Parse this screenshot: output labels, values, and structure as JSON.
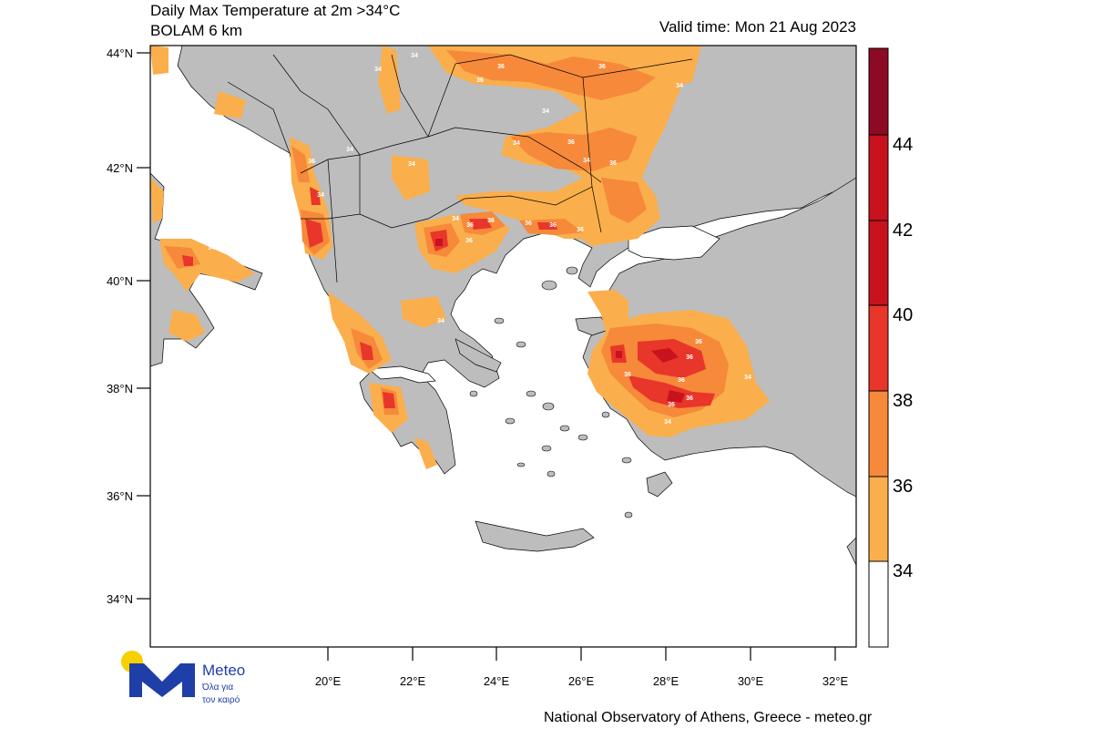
{
  "header": {
    "title_line1": "Daily Max Temperature at 2m >34°C",
    "title_line2": "BOLAM 6 km",
    "valid_time": "Valid time: Mon 21 Aug 2023"
  },
  "footer": {
    "credit": "National Observatory of Athens, Greece - meteo.gr"
  },
  "logo": {
    "brand": "Meteo",
    "tagline_line1": "Όλα για",
    "tagline_line2": "τον καιρό"
  },
  "chart_data": {
    "type": "heatmap",
    "title": "Daily Max Temperature at 2m >34°C",
    "subtitle": "BOLAM 6 km",
    "valid_time": "Mon 21 Aug 2023",
    "xlim": [
      19.0,
      32.5
    ],
    "ylim": [
      33.0,
      44.0
    ],
    "x_ticks": [
      "20°E",
      "22°E",
      "24°E",
      "26°E",
      "28°E",
      "30°E",
      "32°E"
    ],
    "y_ticks": [
      "34°N",
      "36°N",
      "38°N",
      "40°N",
      "42°N",
      "44°N"
    ],
    "colorbar": {
      "labels": [
        "34",
        "36",
        "38",
        "40",
        "42",
        "44"
      ],
      "colors": [
        "#ffffff",
        "#fbae4c",
        "#f6893a",
        "#e8362a",
        "#c8131e",
        "#8c0a24"
      ]
    },
    "contour_labels": [
      "34",
      "36",
      "38"
    ]
  }
}
